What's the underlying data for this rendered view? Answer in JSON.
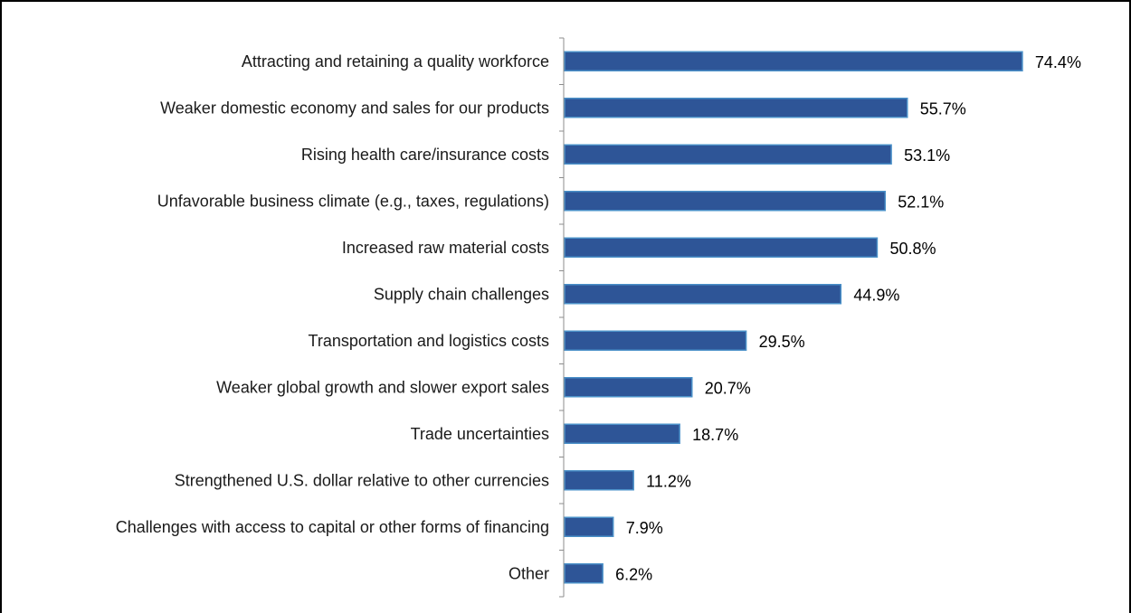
{
  "chart_data": {
    "type": "bar",
    "orientation": "horizontal",
    "categories": [
      "Attracting and retaining a quality workforce",
      "Weaker domestic economy and sales for our products",
      "Rising health care/insurance costs",
      "Unfavorable business climate (e.g., taxes, regulations)",
      "Increased raw material costs",
      "Supply chain challenges",
      "Transportation and logistics costs",
      "Weaker global growth and slower export sales",
      "Trade uncertainties",
      "Strengthened U.S. dollar relative to other currencies",
      "Challenges with access to capital or other forms of financing",
      "Other"
    ],
    "values": [
      74.4,
      55.7,
      53.1,
      52.1,
      50.8,
      44.9,
      29.5,
      20.7,
      18.7,
      11.2,
      7.9,
      6.2
    ],
    "value_labels": [
      "74.4%",
      "55.7%",
      "53.1%",
      "52.1%",
      "50.8%",
      "44.9%",
      "29.5%",
      "20.7%",
      "18.7%",
      "11.2%",
      "7.9%",
      "6.2%"
    ],
    "title": "",
    "xlabel": "",
    "ylabel": "",
    "xlim": [
      0,
      100
    ],
    "grid": false,
    "legend": "none",
    "bar_color": "#2E5597",
    "bar_edge_color": "#4A90C8"
  }
}
